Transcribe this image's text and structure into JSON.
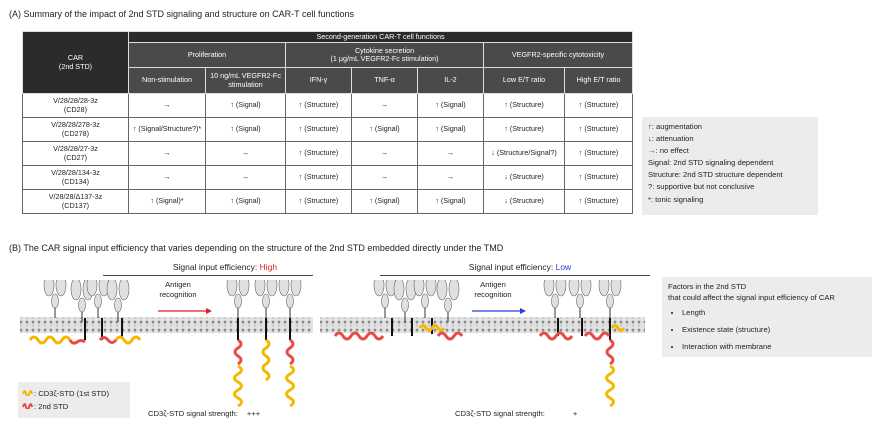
{
  "sectionA": {
    "title": "(A) Summary of the impact of 2nd STD signaling and structure on CAR-T cell functions"
  },
  "table": {
    "car_header_line1": "CAR",
    "car_header_line2": "(2nd STD)",
    "group_header": "Second-generation CAR-T cell functions",
    "prolif": "Proliferation",
    "cyto_line1": "Cytokine secretion",
    "cyto_line2": "(1 μg/mL VEGFR2-Fc stimulation)",
    "cytotox": "VEGFR2-specific cytotoxicity",
    "cols": [
      "Non-stimulation",
      "10 ng/mL VEGFR2-Fc stimulation",
      "IFN-γ",
      "TNF-α",
      "IL-2",
      "Low E/T ratio",
      "High E/T ratio"
    ],
    "rows": [
      {
        "car": "V/28/28/28-3z",
        "std": "(CD28)",
        "cells": [
          "→",
          "↑ (Signal)",
          "↑ (Structure)",
          "→",
          "↑ (Signal)",
          "↑ (Structure)",
          "↑ (Structure)"
        ]
      },
      {
        "car": "V/28/28/278-3z",
        "std": "(CD278)",
        "cells": [
          "↑ (Signal/Structure?)*",
          "↑ (Signal)",
          "↑ (Structure)",
          "↑ (Signal)",
          "↑ (Signal)",
          "↑ (Structure)",
          "↑ (Structure)"
        ]
      },
      {
        "car": "V/28/28/27-3z",
        "std": "(CD27)",
        "cells": [
          "→",
          "→",
          "↑ (Structure)",
          "→",
          "→",
          "↓ (Structure/Signal?)",
          "↑ (Structure)"
        ]
      },
      {
        "car": "V/28/28/134-3z",
        "std": "(CD134)",
        "cells": [
          "→",
          "→",
          "↑ (Structure)",
          "→",
          "→",
          "↓ (Structure)",
          "↑ (Structure)"
        ]
      },
      {
        "car": "V/28/28/Δ137-3z",
        "std": "(CD137)",
        "cells": [
          "↑ (Signal)*",
          "↑ (Signal)",
          "↑ (Structure)",
          "↑ (Signal)",
          "↑ (Signal)",
          "↓ (Structure)",
          "↑ (Structure)"
        ]
      }
    ]
  },
  "legendA": [
    "↑: augmentation",
    "↓: attenuation",
    "→: no effect",
    "Signal: 2nd STD signaling dependent",
    "Structure: 2nd STD structure dependent",
    "?: supportive but not conclusive",
    "*: tonic signaling"
  ],
  "sectionB": {
    "title": "(B) The CAR signal input efficiency that varies depending on the structure of the 2nd STD embedded directly under the TMD"
  },
  "left_panel": {
    "label": "Signal input efficiency: ",
    "level": "High",
    "arrow_label_1": "Antigen",
    "arrow_label_2": "recognition",
    "strength_label": "CD3ζ-STD signal strength:",
    "strength": "+++"
  },
  "right_panel": {
    "label": "Signal input efficiency: ",
    "level": "Low",
    "arrow_label_1": "Antigen",
    "arrow_label_2": "recognition",
    "strength_label": "CD3ζ-STD signal strength:",
    "strength": "+"
  },
  "factors": {
    "line1": "Factors in the 2nd STD",
    "line2": "that could affect the signal input efficiency of CAR",
    "items": [
      "Length",
      "Existence state (structure)",
      "Interaction with membrane"
    ]
  },
  "legendB": {
    "item1": ": CD3ζ-STD (1st STD)",
    "item2": ": 2nd STD"
  },
  "colors": {
    "high": "#e02020",
    "low": "#2040e0",
    "cd3z": "#f5b800",
    "std2": "#e84a4a",
    "header": "#2b2b2b"
  }
}
